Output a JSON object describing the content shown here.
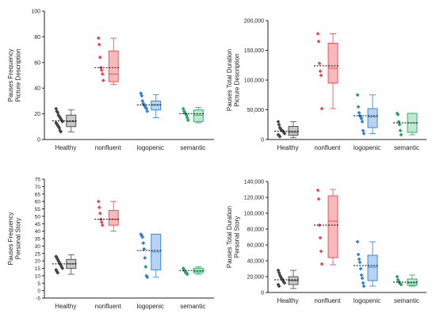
{
  "colors": {
    "Healthy": "#444444",
    "nonfluent": "#e8474b",
    "logopenic": "#2f7fd6",
    "semantic": "#2aa162",
    "Healthy_fill": "#c8c8c8",
    "nonfluent_fill": "#f7b9b9",
    "logopenic_fill": "#b6d3f3",
    "semantic_fill": "#bfe8cf",
    "axis": "#222222",
    "mean_line": "#000000"
  },
  "chart_data": [
    {
      "type": "box+scatter",
      "ylabel": [
        "Pauses Frequency",
        "Picture Description"
      ],
      "categories": [
        "Healthy",
        "nonfluent",
        "logopenic",
        "semantic"
      ],
      "ylim": [
        0,
        100
      ],
      "ytick_labels": [
        "0",
        "20",
        "40",
        "60",
        "80",
        "100"
      ],
      "yticks": [
        0,
        20,
        40,
        60,
        80,
        100
      ],
      "series": [
        {
          "category": "Healthy",
          "points": [
            24,
            22,
            21,
            19,
            18,
            17,
            16,
            15,
            14,
            13,
            12,
            11,
            10,
            9,
            7,
            6
          ],
          "q1": 10,
          "median": 14,
          "q3": 19,
          "whisker_low": 6,
          "whisker_high": 23,
          "mean": 14.5
        },
        {
          "category": "nonfluent",
          "points": [
            79,
            74,
            64,
            56,
            54,
            51,
            46
          ],
          "q1": 45,
          "median": 51,
          "q3": 69,
          "whisker_low": 43,
          "whisker_high": 79,
          "mean": 56
        },
        {
          "category": "logopenic",
          "points": [
            36,
            34,
            30,
            28,
            27,
            26,
            25,
            24,
            22
          ],
          "q1": 23,
          "median": 27,
          "q3": 30,
          "whisker_low": 17,
          "whisker_high": 35,
          "mean": 27
        },
        {
          "category": "semantic",
          "points": [
            24,
            22,
            21,
            20,
            19,
            17,
            15
          ],
          "q1": 14,
          "median": 19,
          "q3": 23,
          "whisker_low": 13,
          "whisker_high": 25,
          "mean": 20
        }
      ]
    },
    {
      "type": "box+scatter",
      "ylabel": [
        "Pauses Total Duration",
        "Picture Description"
      ],
      "categories": [
        "Healthy",
        "nonfluent",
        "logopenic",
        "semantic"
      ],
      "ylim": [
        0,
        200000
      ],
      "ytick_labels": [
        "0",
        "50,000",
        "100,000",
        "150,000",
        "200,000"
      ],
      "yticks": [
        0,
        50000,
        100000,
        150000,
        200000
      ],
      "series": [
        {
          "category": "Healthy",
          "points": [
            30000,
            25000,
            20000,
            18000,
            16000,
            15000,
            14000,
            12000,
            10000,
            8000,
            7000,
            5000
          ],
          "q1": 7000,
          "median": 12000,
          "q3": 22000,
          "whisker_low": 3000,
          "whisker_high": 30000,
          "mean": 14000
        },
        {
          "category": "nonfluent",
          "points": [
            178000,
            165000,
            128000,
            115000,
            108000,
            52000
          ],
          "q1": 95000,
          "median": 120000,
          "q3": 162000,
          "whisker_low": 52000,
          "whisker_high": 178000,
          "mean": 124000
        },
        {
          "category": "logopenic",
          "points": [
            75000,
            55000,
            45000,
            40000,
            38000,
            35000,
            30000,
            15000,
            10000
          ],
          "q1": 20000,
          "median": 38000,
          "q3": 52000,
          "whisker_low": 10000,
          "whisker_high": 75000,
          "mean": 40000
        },
        {
          "category": "semantic",
          "points": [
            44000,
            42000,
            30000,
            25000,
            15000,
            8000
          ],
          "q1": 12000,
          "median": 28000,
          "q3": 44000,
          "whisker_low": 8000,
          "whisker_high": 44000,
          "mean": 28000
        }
      ]
    },
    {
      "type": "box+scatter",
      "ylabel": [
        "Pauses Frequency",
        "Personal Story"
      ],
      "categories": [
        "Healthy",
        "nonfluent",
        "logopenic",
        "semantic"
      ],
      "ylim": [
        -5,
        75
      ],
      "ytick_labels": [
        "-5",
        "0",
        "5",
        "10",
        "15",
        "20",
        "25",
        "30",
        "35",
        "40",
        "45",
        "50",
        "55",
        "60",
        "65",
        "70",
        "75"
      ],
      "yticks": [
        -5,
        0,
        5,
        10,
        15,
        20,
        25,
        30,
        35,
        40,
        45,
        50,
        55,
        60,
        65,
        70,
        75
      ],
      "series": [
        {
          "category": "Healthy",
          "points": [
            23,
            22,
            21,
            20,
            19,
            18,
            17,
            16,
            15,
            14,
            13,
            12
          ],
          "q1": 15,
          "median": 18,
          "q3": 21,
          "whisker_low": 11,
          "whisker_high": 24,
          "mean": 18
        },
        {
          "category": "nonfluent",
          "points": [
            60,
            56,
            52,
            48,
            46,
            44
          ],
          "q1": 44,
          "median": 48,
          "q3": 54,
          "whisker_low": 40,
          "whisker_high": 60,
          "mean": 48
        },
        {
          "category": "logopenic",
          "points": [
            38,
            37,
            36,
            32,
            28,
            22,
            16,
            10,
            9
          ],
          "q1": 14,
          "median": 26,
          "q3": 38,
          "whisker_low": 9,
          "whisker_high": 38,
          "mean": 27
        },
        {
          "category": "semantic",
          "points": [
            15,
            14,
            13,
            12,
            12,
            11
          ],
          "q1": 12,
          "median": 13,
          "q3": 15,
          "whisker_low": 11,
          "whisker_high": 16,
          "mean": 13.5
        }
      ]
    },
    {
      "type": "box+scatter",
      "ylabel": [
        "Pauses Total Duration",
        "Personal Story"
      ],
      "categories": [
        "Healthy",
        "nonfluent",
        "logopenic",
        "semantic"
      ],
      "ylim": [
        0,
        140000
      ],
      "ytick_labels": [
        "0",
        "20,000",
        "40,000",
        "60,000",
        "80,000",
        "100,000",
        "120,000",
        "140,000"
      ],
      "yticks": [
        0,
        20000,
        40000,
        60000,
        80000,
        100000,
        120000,
        140000
      ],
      "series": [
        {
          "category": "Healthy",
          "points": [
            28000,
            25000,
            22000,
            20000,
            18000,
            17000,
            15000,
            13000,
            12000,
            10000,
            8000
          ],
          "q1": 10000,
          "median": 15000,
          "q3": 20000,
          "whisker_low": 5000,
          "whisker_high": 28000,
          "mean": 16000
        },
        {
          "category": "nonfluent",
          "points": [
            129000,
            118000,
            85000,
            69000,
            52000,
            36000
          ],
          "q1": 44000,
          "median": 90000,
          "q3": 122000,
          "whisker_low": 35000,
          "whisker_high": 130000,
          "mean": 85000
        },
        {
          "category": "logopenic",
          "points": [
            64000,
            48000,
            42000,
            38000,
            30000,
            22000,
            18000,
            12000,
            8000
          ],
          "q1": 15000,
          "median": 32000,
          "q3": 47000,
          "whisker_low": 8000,
          "whisker_high": 64000,
          "mean": 34000
        },
        {
          "category": "semantic",
          "points": [
            20000,
            16000,
            14000,
            12000,
            11000,
            10000
          ],
          "q1": 9000,
          "median": 12000,
          "q3": 17000,
          "whisker_low": 8000,
          "whisker_high": 22000,
          "mean": 13000
        }
      ]
    }
  ]
}
